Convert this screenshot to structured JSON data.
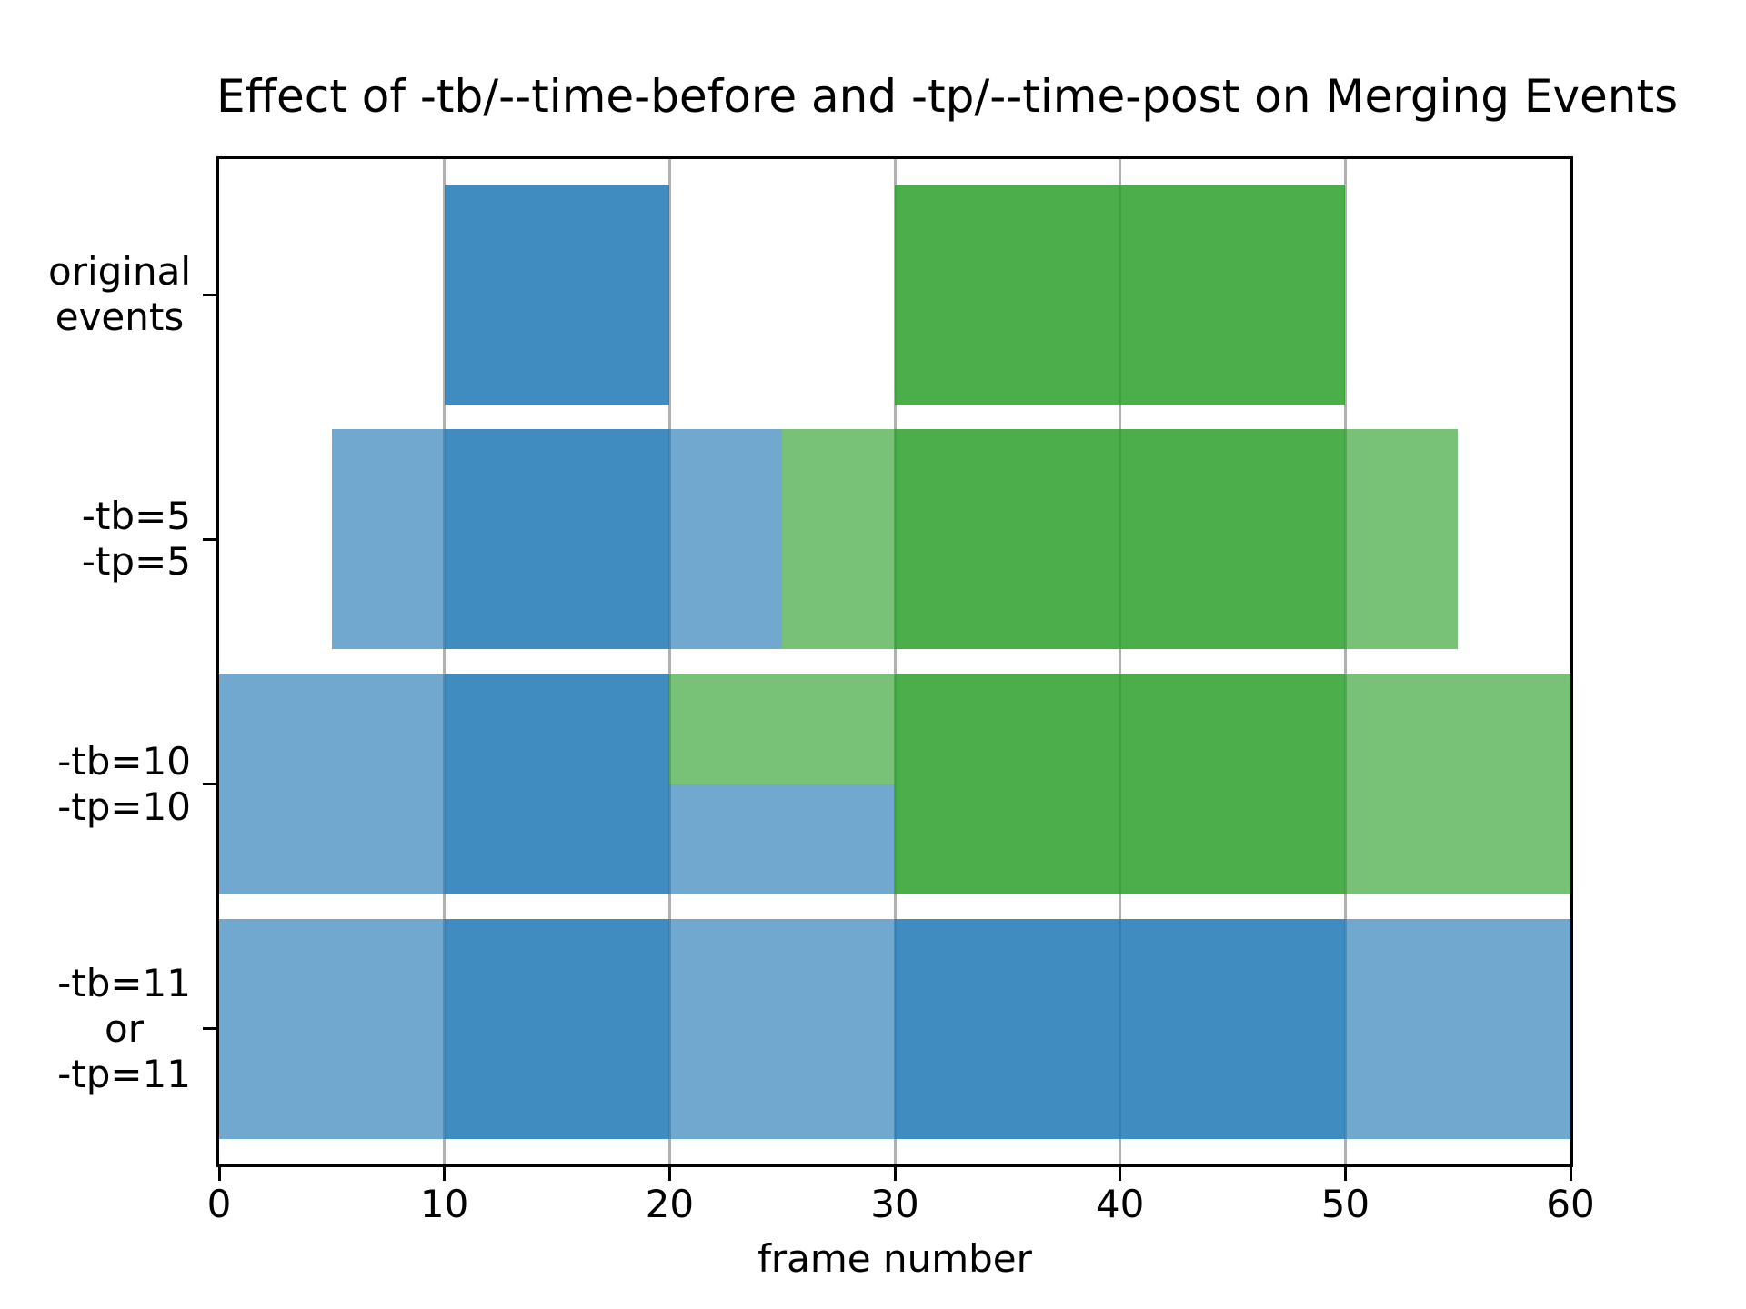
{
  "figure": {
    "background": "#ffffff"
  },
  "chart_data": {
    "type": "bar",
    "subtype": "broken-horizontal-bar-timeline",
    "title": "Effect of -tb/--time-before and -tp/--time-post on Merging Events",
    "xlabel": "frame number",
    "ylabel": "",
    "xlim": [
      0,
      60
    ],
    "xticks": [
      0,
      10,
      20,
      30,
      40,
      50,
      60
    ],
    "grid": {
      "axis": "x",
      "color": "#b0b0b0"
    },
    "legend": null,
    "colors": {
      "blue": "#1f77b4",
      "green": "#2ca02c",
      "solid_alpha": 0.85,
      "light_alpha": 0.64,
      "grid": "#b0b0b0",
      "spine": "#000000",
      "text": "#000000"
    },
    "rows": [
      {
        "label_lines": [
          "original",
          "events"
        ],
        "segments": [
          {
            "start": 10,
            "end": 20,
            "color": "blue",
            "shade": "solid",
            "band": "full"
          },
          {
            "start": 30,
            "end": 50,
            "color": "green",
            "shade": "solid",
            "band": "full"
          }
        ]
      },
      {
        "label_lines": [
          "-tb=5",
          "-tp=5"
        ],
        "segments": [
          {
            "start": 5,
            "end": 10,
            "color": "blue",
            "shade": "light",
            "band": "full"
          },
          {
            "start": 10,
            "end": 20,
            "color": "blue",
            "shade": "solid",
            "band": "full"
          },
          {
            "start": 20,
            "end": 25,
            "color": "blue",
            "shade": "light",
            "band": "full"
          },
          {
            "start": 25,
            "end": 30,
            "color": "green",
            "shade": "light",
            "band": "full"
          },
          {
            "start": 30,
            "end": 50,
            "color": "green",
            "shade": "solid",
            "band": "full"
          },
          {
            "start": 50,
            "end": 55,
            "color": "green",
            "shade": "light",
            "band": "full"
          }
        ]
      },
      {
        "label_lines": [
          "-tb=10",
          "-tp=10"
        ],
        "segments": [
          {
            "start": 0,
            "end": 10,
            "color": "blue",
            "shade": "light",
            "band": "full"
          },
          {
            "start": 10,
            "end": 20,
            "color": "blue",
            "shade": "solid",
            "band": "full"
          },
          {
            "start": 20,
            "end": 30,
            "color": "green",
            "shade": "light",
            "band": "top"
          },
          {
            "start": 20,
            "end": 30,
            "color": "blue",
            "shade": "light",
            "band": "bottom"
          },
          {
            "start": 30,
            "end": 50,
            "color": "green",
            "shade": "solid",
            "band": "full"
          },
          {
            "start": 50,
            "end": 60,
            "color": "green",
            "shade": "light",
            "band": "full"
          }
        ]
      },
      {
        "label_lines": [
          "-tb=11",
          "or",
          "-tp=11"
        ],
        "segments": [
          {
            "start": 0,
            "end": 10,
            "color": "blue",
            "shade": "light",
            "band": "full"
          },
          {
            "start": 10,
            "end": 20,
            "color": "blue",
            "shade": "solid",
            "band": "full"
          },
          {
            "start": 20,
            "end": 30,
            "color": "blue",
            "shade": "light",
            "band": "full"
          },
          {
            "start": 30,
            "end": 50,
            "color": "blue",
            "shade": "solid",
            "band": "full"
          },
          {
            "start": 50,
            "end": 60,
            "color": "blue",
            "shade": "light",
            "band": "full"
          }
        ]
      }
    ]
  }
}
